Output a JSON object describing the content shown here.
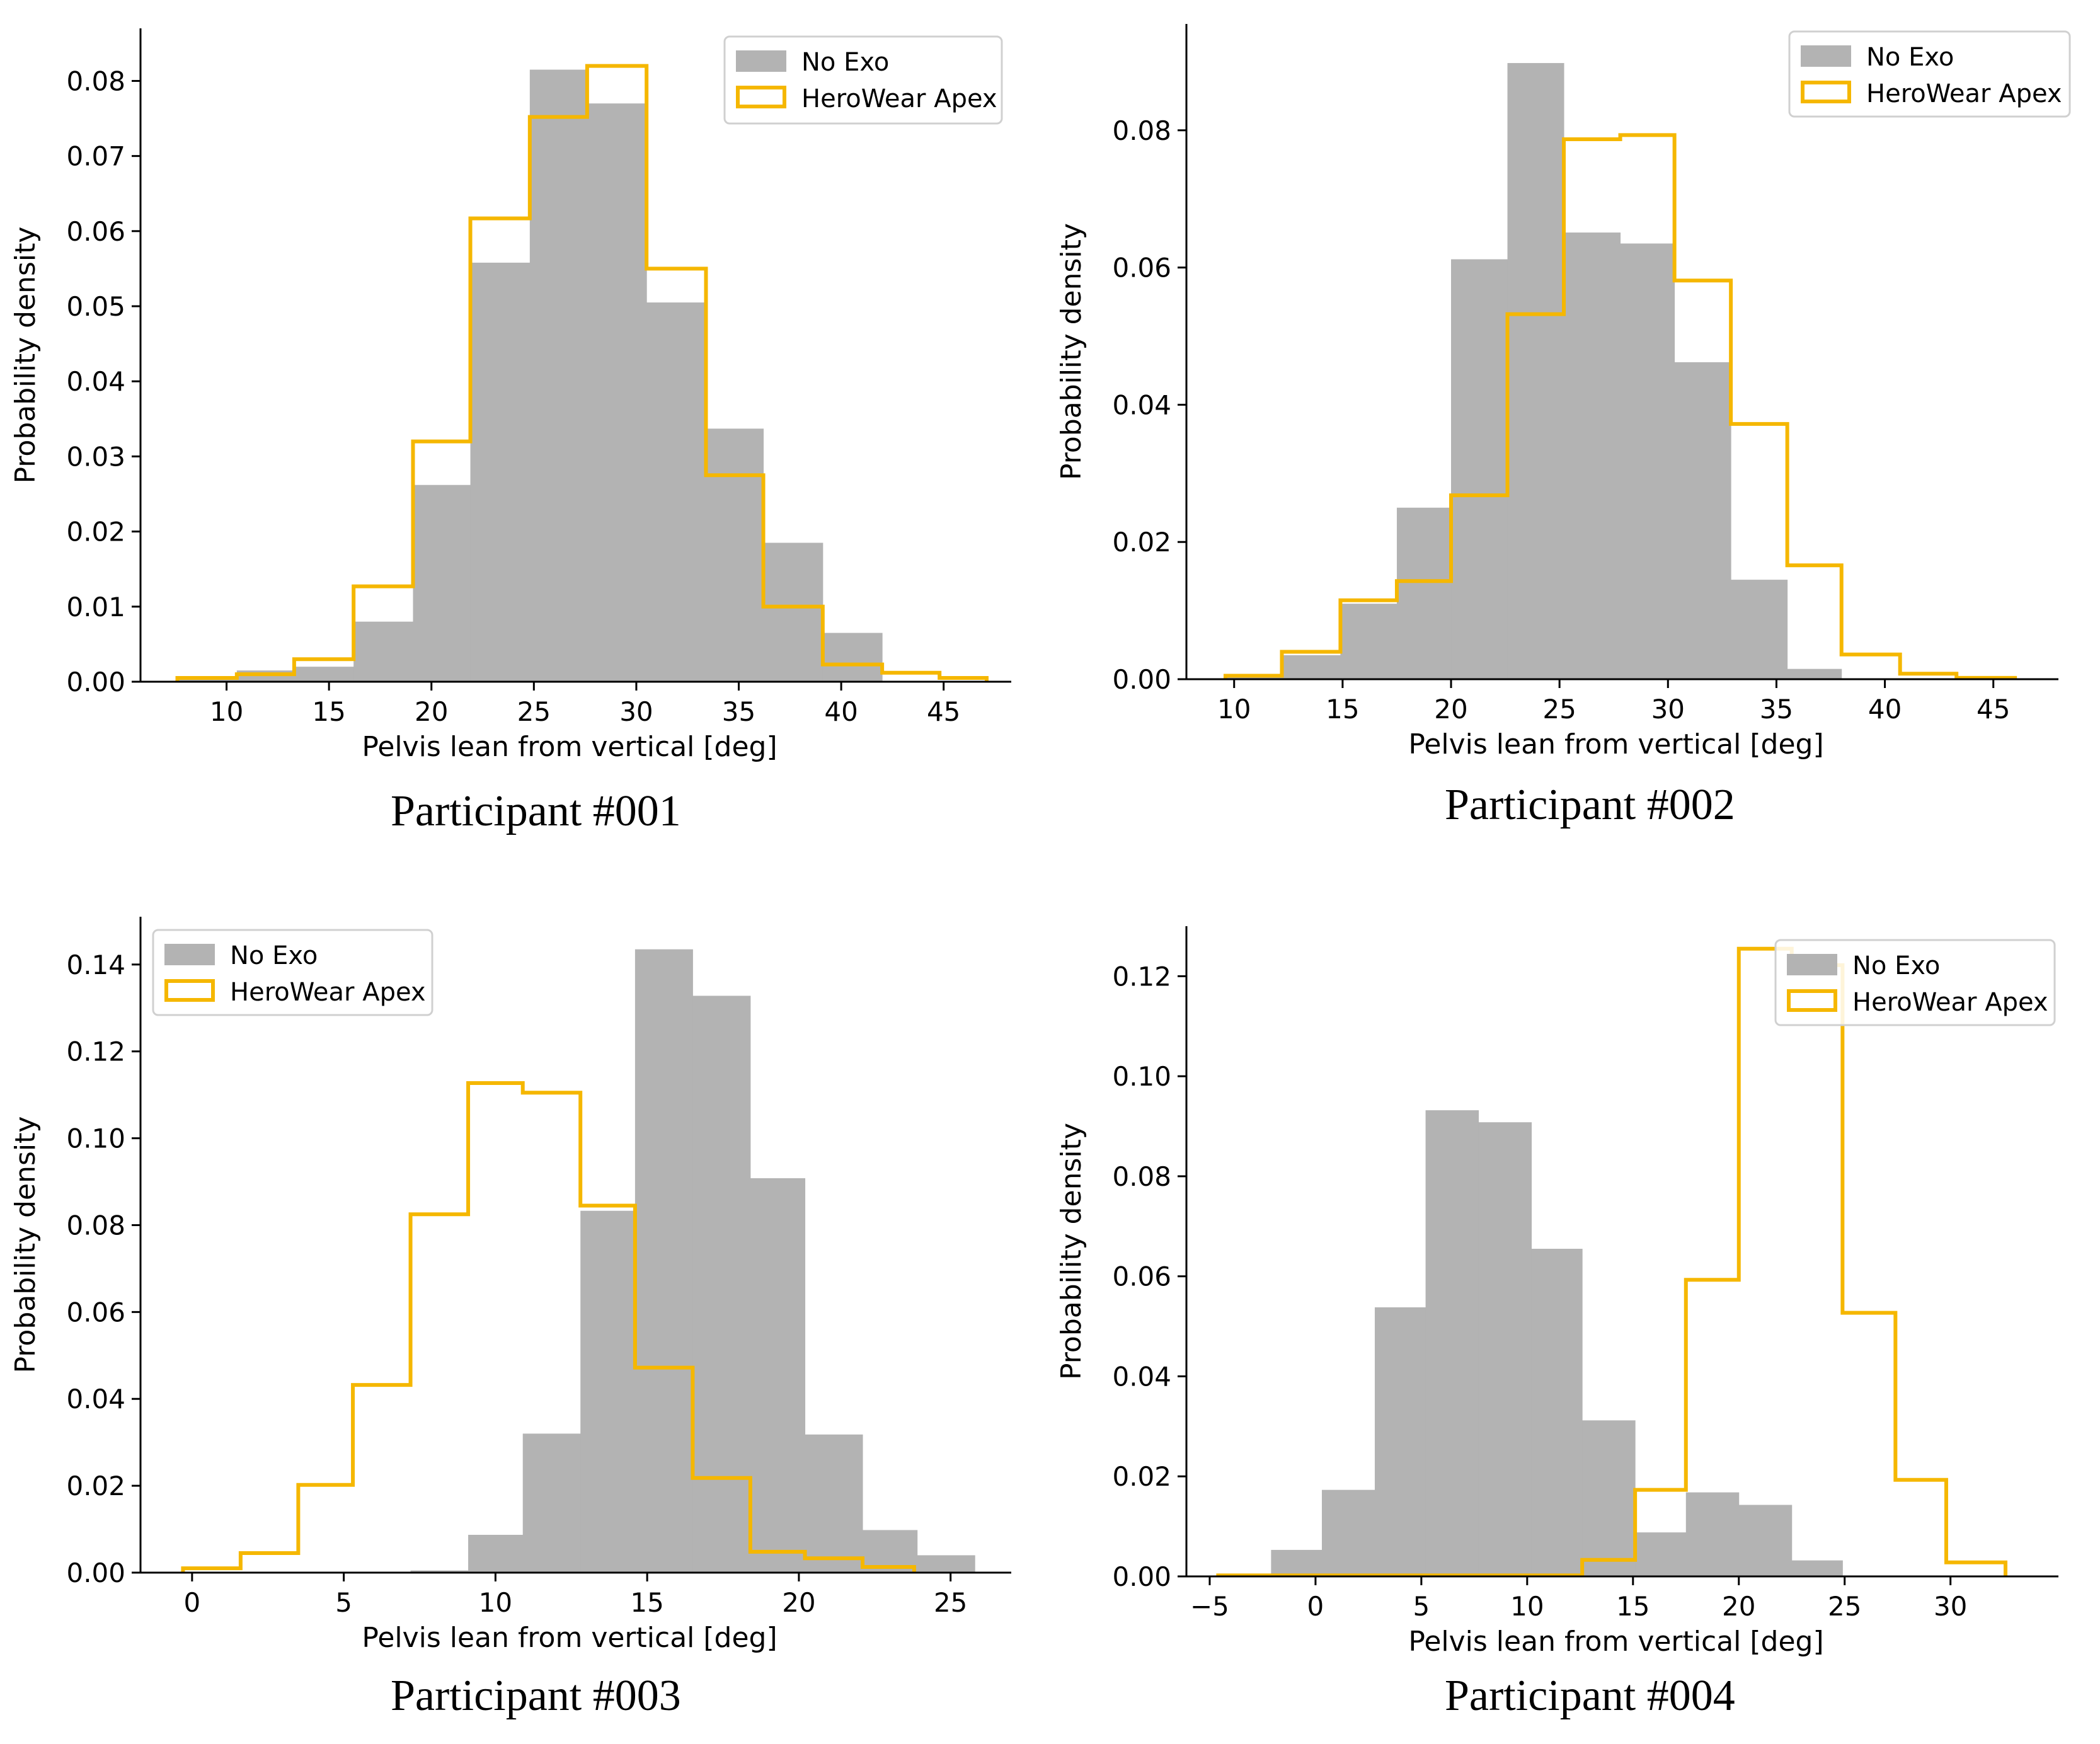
{
  "figure": {
    "colors": {
      "no_exo": "#b3b3b3",
      "herowear": "#f5b700",
      "axis": "#000000"
    },
    "panels": [
      {
        "caption": "Participant #001",
        "chart_data": {
          "type": "histogram",
          "xlabel": "Pelvis lean from vertical [deg]",
          "ylabel": "Probability density",
          "xlim": [
            5.8,
            48.3
          ],
          "ylim": [
            0,
            0.087
          ],
          "xticks": [
            10,
            15,
            20,
            25,
            30,
            35,
            40,
            45
          ],
          "yticks": [
            0.0,
            0.01,
            0.02,
            0.03,
            0.04,
            0.05,
            0.06,
            0.07,
            0.08
          ],
          "ytick_labels": [
            "0.00",
            "0.01",
            "0.02",
            "0.03",
            "0.04",
            "0.05",
            "0.06",
            "0.07",
            "0.08"
          ],
          "legend": {
            "position": "top-right",
            "entries": [
              "No Exo",
              "HeroWear Apex"
            ]
          },
          "series": [
            {
              "name": "No Exo",
              "style": "filled",
              "bins": [
                7.6,
                10.5,
                13.3,
                16.2,
                19.1,
                21.9,
                24.8,
                27.6,
                30.5,
                33.4,
                36.2,
                39.1,
                42.0
              ],
              "values": [
                0.0005,
                0.0015,
                0.002,
                0.008,
                0.0262,
                0.0558,
                0.0815,
                0.077,
                0.0505,
                0.0337,
                0.0185,
                0.0065,
                0.0008
              ]
            },
            {
              "name": "HeroWear Apex",
              "style": "step",
              "bins": [
                7.6,
                10.5,
                13.3,
                16.2,
                19.1,
                21.9,
                24.8,
                27.6,
                30.5,
                33.4,
                36.2,
                39.1,
                42.0,
                44.8,
                47.1
              ],
              "values": [
                0.0005,
                0.001,
                0.003,
                0.0127,
                0.032,
                0.0617,
                0.0752,
                0.082,
                0.055,
                0.0275,
                0.01,
                0.0023,
                0.0012,
                0.0005
              ]
            }
          ]
        }
      },
      {
        "caption": "Participant #002",
        "chart_data": {
          "type": "histogram",
          "xlabel": "Pelvis lean from vertical [deg]",
          "ylabel": "Probability density",
          "xlim": [
            7.8,
            48.0
          ],
          "ylim": [
            0,
            0.0955
          ],
          "xticks": [
            10,
            15,
            20,
            25,
            30,
            35,
            40,
            45
          ],
          "yticks": [
            0.0,
            0.02,
            0.04,
            0.06,
            0.08
          ],
          "ytick_labels": [
            "0.00",
            "0.02",
            "0.04",
            "0.06",
            "0.08"
          ],
          "legend": {
            "position": "top-right",
            "entries": [
              "No Exo",
              "HeroWear Apex"
            ]
          },
          "series": [
            {
              "name": "No Exo",
              "style": "filled",
              "bins": [
                9.6,
                12.2,
                14.9,
                17.5,
                20.0,
                22.6,
                25.2,
                27.8,
                30.3,
                32.9,
                35.5,
                38.0
              ],
              "values": [
                0.0005,
                0.0035,
                0.011,
                0.025,
                0.0612,
                0.0898,
                0.0651,
                0.0635,
                0.0462,
                0.0145,
                0.0015
              ]
            },
            {
              "name": "HeroWear Apex",
              "style": "step",
              "bins": [
                9.6,
                12.2,
                14.9,
                17.5,
                20.0,
                22.6,
                25.2,
                27.8,
                30.3,
                32.9,
                35.5,
                38.0,
                40.7,
                43.3,
                46.0
              ],
              "values": [
                0.0005,
                0.004,
                0.0115,
                0.0143,
                0.0268,
                0.0532,
                0.0787,
                0.0793,
                0.0581,
                0.0372,
                0.0166,
                0.0036,
                0.0008,
                0.0002
              ]
            }
          ]
        }
      },
      {
        "caption": "Participant #003",
        "chart_data": {
          "type": "histogram",
          "xlabel": "Pelvis lean from vertical [deg]",
          "ylabel": "Probability density",
          "xlim": [
            -1.7,
            27.0
          ],
          "ylim": [
            0,
            0.151
          ],
          "xticks": [
            0,
            5,
            10,
            15,
            20,
            25
          ],
          "yticks": [
            0.0,
            0.02,
            0.04,
            0.06,
            0.08,
            0.1,
            0.12,
            0.14
          ],
          "ytick_labels": [
            "0.00",
            "0.02",
            "0.04",
            "0.06",
            "0.08",
            "0.10",
            "0.12",
            "0.14"
          ],
          "legend": {
            "position": "top-left",
            "entries": [
              "No Exo",
              "HeroWear Apex"
            ]
          },
          "series": [
            {
              "name": "No Exo",
              "style": "filled",
              "bins": [
                7.2,
                9.1,
                10.9,
                12.8,
                14.6,
                16.5,
                18.4,
                20.2,
                22.1,
                23.9,
                25.8
              ],
              "values": [
                0.0005,
                0.0087,
                0.032,
                0.0833,
                0.1435,
                0.1328,
                0.0908,
                0.0318,
                0.0098,
                0.004
              ]
            },
            {
              "name": "HeroWear Apex",
              "style": "step",
              "bins": [
                -0.3,
                1.6,
                3.5,
                5.3,
                7.2,
                9.1,
                10.9,
                12.8,
                14.6,
                16.5,
                18.4,
                20.2,
                22.1,
                23.8
              ],
              "values": [
                0.001,
                0.0045,
                0.0202,
                0.0432,
                0.0825,
                0.1127,
                0.1105,
                0.0845,
                0.0472,
                0.0218,
                0.0048,
                0.0033,
                0.0013
              ]
            }
          ]
        }
      },
      {
        "caption": "Participant #004",
        "chart_data": {
          "type": "histogram",
          "xlabel": "Pelvis lean from vertical [deg]",
          "ylabel": "Probability density",
          "xlim": [
            -6.1,
            35.1
          ],
          "ylim": [
            0,
            0.13
          ],
          "xticks": [
            -5,
            0,
            5,
            10,
            15,
            20,
            25,
            30
          ],
          "xtick_labels": [
            "−5",
            "0",
            "5",
            "10",
            "15",
            "20",
            "25",
            "30"
          ],
          "yticks": [
            0.0,
            0.02,
            0.04,
            0.06,
            0.08,
            0.1,
            0.12
          ],
          "ytick_labels": [
            "0.00",
            "0.02",
            "0.04",
            "0.06",
            "0.08",
            "0.10",
            "0.12"
          ],
          "legend": {
            "position": "top-right",
            "entries": [
              "No Exo",
              "HeroWear Apex"
            ]
          },
          "series": [
            {
              "name": "No Exo",
              "style": "filled",
              "bins": [
                -4.6,
                -2.1,
                0.3,
                2.8,
                5.2,
                7.7,
                10.2,
                12.6,
                15.1,
                17.5,
                20.0,
                22.5,
                24.9
              ],
              "values": [
                0.0005,
                0.0053,
                0.0173,
                0.0538,
                0.0932,
                0.0908,
                0.0655,
                0.0312,
                0.0088,
                0.0168,
                0.0143,
                0.0032
              ]
            },
            {
              "name": "HeroWear Apex",
              "style": "step",
              "bins": [
                -4.6,
                12.6,
                15.1,
                17.5,
                20.0,
                22.5,
                24.9,
                27.4,
                29.8,
                32.6
              ],
              "values": [
                0.0002,
                0.0033,
                0.0173,
                0.0593,
                0.1255,
                0.1222,
                0.0527,
                0.0193,
                0.0028
              ]
            }
          ]
        }
      }
    ]
  }
}
